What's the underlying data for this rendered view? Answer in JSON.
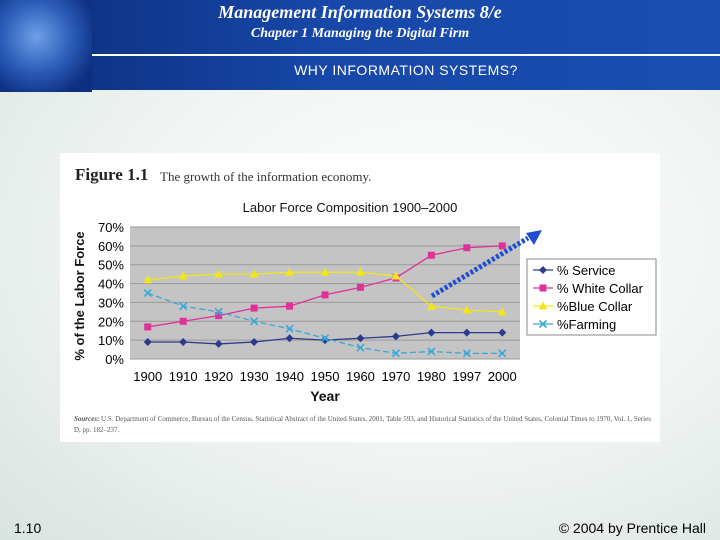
{
  "header": {
    "title": "Management Information Systems 8/e",
    "subtitle": "Chapter 1 Managing the Digital Firm",
    "section": "WHY INFORMATION SYSTEMS?"
  },
  "figure": {
    "label": "Figure 1.1",
    "caption": "The growth of the information economy.",
    "sources_label": "Sources:",
    "sources_text": "U.S. Department of Commerce, Bureau of the Census, Statistical Abstract of the United States, 2001, Table 593, and Historical Statistics of the United States, Colonial Times to 1970, Vol. 1, Series D, pp. 182–237."
  },
  "chart_data": {
    "type": "line",
    "title": "Labor Force Composition 1900–2000",
    "xlabel": "Year",
    "ylabel": "% of the Labor Force",
    "categories": [
      "1900",
      "1910",
      "1920",
      "1930",
      "1940",
      "1950",
      "1960",
      "1970",
      "1980",
      "1997",
      "2000"
    ],
    "y_ticks": [
      "0%",
      "10%",
      "20%",
      "30%",
      "40%",
      "50%",
      "60%",
      "70%"
    ],
    "ylim": [
      0,
      70
    ],
    "legend_position": "right",
    "series": [
      {
        "name": "% Service",
        "color": "#2b3a8c",
        "marker": "diamond",
        "values": [
          9,
          9,
          8,
          9,
          11,
          10,
          11,
          12,
          14,
          14,
          14
        ]
      },
      {
        "name": "% White Collar",
        "color": "#e0309a",
        "marker": "square",
        "values": [
          17,
          20,
          23,
          27,
          28,
          34,
          38,
          43,
          55,
          59,
          60
        ]
      },
      {
        "name": "%Blue Collar",
        "color": "#f2e51a",
        "marker": "triangle",
        "values": [
          42,
          44,
          45,
          45,
          46,
          46,
          46,
          44,
          28,
          26,
          25
        ]
      },
      {
        "name": "%Farming",
        "color": "#3aa8d8",
        "marker": "x",
        "values": [
          35,
          28,
          25,
          20,
          16,
          11,
          6,
          3,
          4,
          3,
          3
        ]
      }
    ]
  },
  "footer": {
    "slide_number": "1.10",
    "copyright": "© 2004 by Prentice Hall"
  }
}
